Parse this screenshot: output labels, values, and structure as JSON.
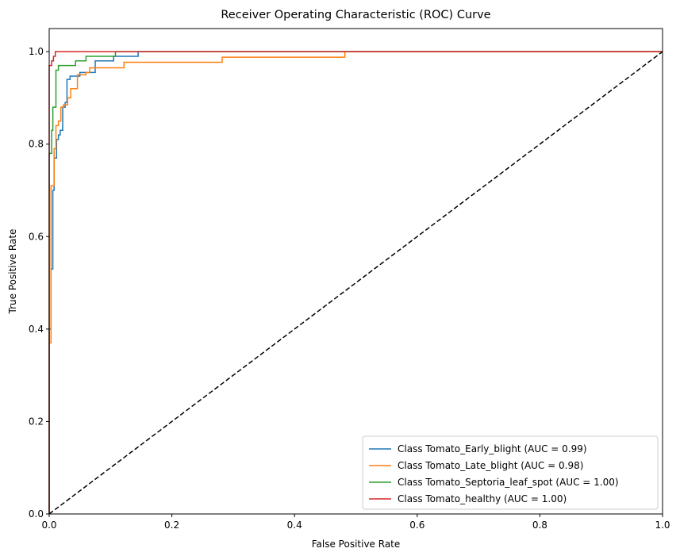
{
  "chart_data": {
    "type": "line",
    "title": "Receiver Operating Characteristic (ROC) Curve",
    "xlabel": "False Positive Rate",
    "ylabel": "True Positive Rate",
    "xlim": [
      0.0,
      1.0
    ],
    "ylim": [
      0.0,
      1.05
    ],
    "xticks": [
      "0.0",
      "0.2",
      "0.4",
      "0.6",
      "0.8",
      "1.0"
    ],
    "yticks": [
      "0.0",
      "0.2",
      "0.4",
      "0.6",
      "0.8",
      "1.0"
    ],
    "grid": false,
    "legend_position": "bottom-right",
    "series": [
      {
        "name": "Class Tomato_Early_blight (AUC = 0.99)",
        "color": "#1f77b4",
        "points": [
          [
            0,
            0
          ],
          [
            0,
            0.4
          ],
          [
            0.003,
            0.4
          ],
          [
            0.003,
            0.53
          ],
          [
            0.006,
            0.53
          ],
          [
            0.006,
            0.7
          ],
          [
            0.008,
            0.7
          ],
          [
            0.008,
            0.77
          ],
          [
            0.012,
            0.77
          ],
          [
            0.012,
            0.81
          ],
          [
            0.015,
            0.81
          ],
          [
            0.015,
            0.82
          ],
          [
            0.018,
            0.82
          ],
          [
            0.018,
            0.83
          ],
          [
            0.022,
            0.83
          ],
          [
            0.022,
            0.88
          ],
          [
            0.026,
            0.88
          ],
          [
            0.026,
            0.89
          ],
          [
            0.029,
            0.89
          ],
          [
            0.029,
            0.94
          ],
          [
            0.034,
            0.94
          ],
          [
            0.034,
            0.947
          ],
          [
            0.05,
            0.947
          ],
          [
            0.05,
            0.955
          ],
          [
            0.075,
            0.955
          ],
          [
            0.075,
            0.98
          ],
          [
            0.105,
            0.98
          ],
          [
            0.105,
            0.99
          ],
          [
            0.145,
            0.99
          ],
          [
            0.145,
            1.0
          ],
          [
            1.0,
            1.0
          ]
        ]
      },
      {
        "name": "Class Tomato_Late_blight (AUC = 0.98)",
        "color": "#ff7f0e",
        "points": [
          [
            0,
            0
          ],
          [
            0,
            0.37
          ],
          [
            0.003,
            0.37
          ],
          [
            0.003,
            0.71
          ],
          [
            0.008,
            0.71
          ],
          [
            0.008,
            0.79
          ],
          [
            0.011,
            0.79
          ],
          [
            0.011,
            0.84
          ],
          [
            0.015,
            0.84
          ],
          [
            0.015,
            0.85
          ],
          [
            0.019,
            0.85
          ],
          [
            0.019,
            0.88
          ],
          [
            0.023,
            0.88
          ],
          [
            0.023,
            0.885
          ],
          [
            0.03,
            0.885
          ],
          [
            0.03,
            0.9
          ],
          [
            0.035,
            0.9
          ],
          [
            0.035,
            0.92
          ],
          [
            0.046,
            0.92
          ],
          [
            0.046,
            0.95
          ],
          [
            0.06,
            0.95
          ],
          [
            0.06,
            0.955
          ],
          [
            0.066,
            0.955
          ],
          [
            0.066,
            0.965
          ],
          [
            0.122,
            0.965
          ],
          [
            0.122,
            0.977
          ],
          [
            0.282,
            0.977
          ],
          [
            0.282,
            0.988
          ],
          [
            0.482,
            0.988
          ],
          [
            0.482,
            1.0
          ],
          [
            1.0,
            1.0
          ]
        ]
      },
      {
        "name": "Class Tomato_Septoria_leaf_spot (AUC = 1.00)",
        "color": "#2ca02c",
        "points": [
          [
            0,
            0
          ],
          [
            0,
            0.78
          ],
          [
            0.004,
            0.78
          ],
          [
            0.004,
            0.83
          ],
          [
            0.006,
            0.83
          ],
          [
            0.006,
            0.88
          ],
          [
            0.011,
            0.88
          ],
          [
            0.011,
            0.96
          ],
          [
            0.015,
            0.96
          ],
          [
            0.015,
            0.97
          ],
          [
            0.043,
            0.97
          ],
          [
            0.043,
            0.98
          ],
          [
            0.06,
            0.98
          ],
          [
            0.06,
            0.99
          ],
          [
            0.108,
            0.99
          ],
          [
            0.108,
            1.0
          ],
          [
            1.0,
            1.0
          ]
        ]
      },
      {
        "name": "Class Tomato_healthy (AUC = 1.00)",
        "color": "#d62728",
        "points": [
          [
            0,
            0
          ],
          [
            0,
            0.97
          ],
          [
            0.004,
            0.97
          ],
          [
            0.004,
            0.98
          ],
          [
            0.007,
            0.98
          ],
          [
            0.007,
            0.99
          ],
          [
            0.01,
            0.99
          ],
          [
            0.01,
            1.0
          ],
          [
            1.0,
            1.0
          ]
        ]
      },
      {
        "name": "",
        "color": "#000000",
        "dashed": true,
        "points": [
          [
            0,
            0
          ],
          [
            1,
            1
          ]
        ]
      }
    ]
  }
}
